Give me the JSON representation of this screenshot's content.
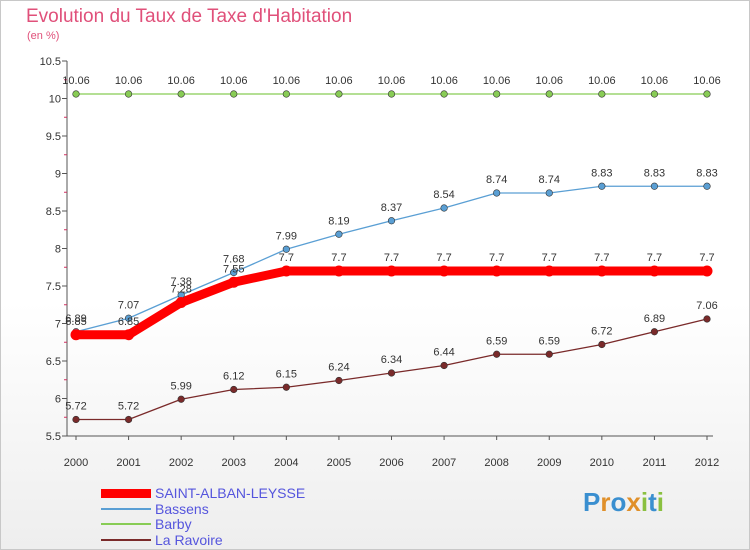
{
  "title": "Evolution du Taux de Taxe d'Habitation",
  "subtitle": "(en %)",
  "logo": {
    "letters": [
      "P",
      "r",
      "o",
      "x",
      "i",
      "t",
      "i"
    ],
    "colors": [
      "#3a8fd0",
      "#e0902a",
      "#3a8fd0",
      "#e0902a",
      "#8ac040",
      "#3a8fd0",
      "#8ac040"
    ]
  },
  "chart_data": {
    "type": "line",
    "x": [
      "2000",
      "2001",
      "2002",
      "2003",
      "2004",
      "2005",
      "2006",
      "2007",
      "2008",
      "2009",
      "2010",
      "2011",
      "2012"
    ],
    "ylim": [
      5.5,
      10.5
    ],
    "yticks": [
      "5.5",
      "6",
      "6.5",
      "7",
      "7.5",
      "8",
      "8.5",
      "9",
      "9.5",
      "10",
      "10.5"
    ],
    "grid": false,
    "legend_position": "bottom-left",
    "series": [
      {
        "name": "SAINT-ALBAN-LEYSSE",
        "color": "#ff0000",
        "values": [
          6.85,
          6.85,
          7.28,
          7.55,
          7.7,
          7.7,
          7.7,
          7.7,
          7.7,
          7.7,
          7.7,
          7.7,
          7.7
        ],
        "labels": [
          "6.85",
          "6.85",
          "7.28",
          "7.55",
          "7.7",
          "7.7",
          "7.7",
          "7.7",
          "7.7",
          "7.7",
          "7.7",
          "7.7",
          "7.7"
        ]
      },
      {
        "name": "Bassens",
        "color": "#5a9fd4",
        "values": [
          6.89,
          7.07,
          7.38,
          7.68,
          7.99,
          8.19,
          8.37,
          8.54,
          8.74,
          8.74,
          8.83,
          8.83,
          8.83
        ],
        "labels": [
          "6.89",
          "7.07",
          "7.38",
          "7.68",
          "7.99",
          "8.19",
          "8.37",
          "8.54",
          "8.74",
          "8.74",
          "8.83",
          "8.83",
          "8.83"
        ]
      },
      {
        "name": "Barby",
        "color": "#88cc55",
        "values": [
          10.06,
          10.06,
          10.06,
          10.06,
          10.06,
          10.06,
          10.06,
          10.06,
          10.06,
          10.06,
          10.06,
          10.06,
          10.06
        ],
        "labels": [
          "10.06",
          "10.06",
          "10.06",
          "10.06",
          "10.06",
          "10.06",
          "10.06",
          "10.06",
          "10.06",
          "10.06",
          "10.06",
          "10.06",
          "10.06"
        ]
      },
      {
        "name": "La Ravoire",
        "color": "#7a2a2a",
        "values": [
          5.72,
          5.72,
          5.99,
          6.12,
          6.15,
          6.24,
          6.34,
          6.44,
          6.59,
          6.59,
          6.72,
          6.89,
          7.06
        ],
        "labels": [
          "5.72",
          "5.72",
          "5.99",
          "6.12",
          "6.15",
          "6.24",
          "6.34",
          "6.44",
          "6.59",
          "6.59",
          "6.72",
          "6.89",
          "7.06"
        ]
      }
    ]
  }
}
